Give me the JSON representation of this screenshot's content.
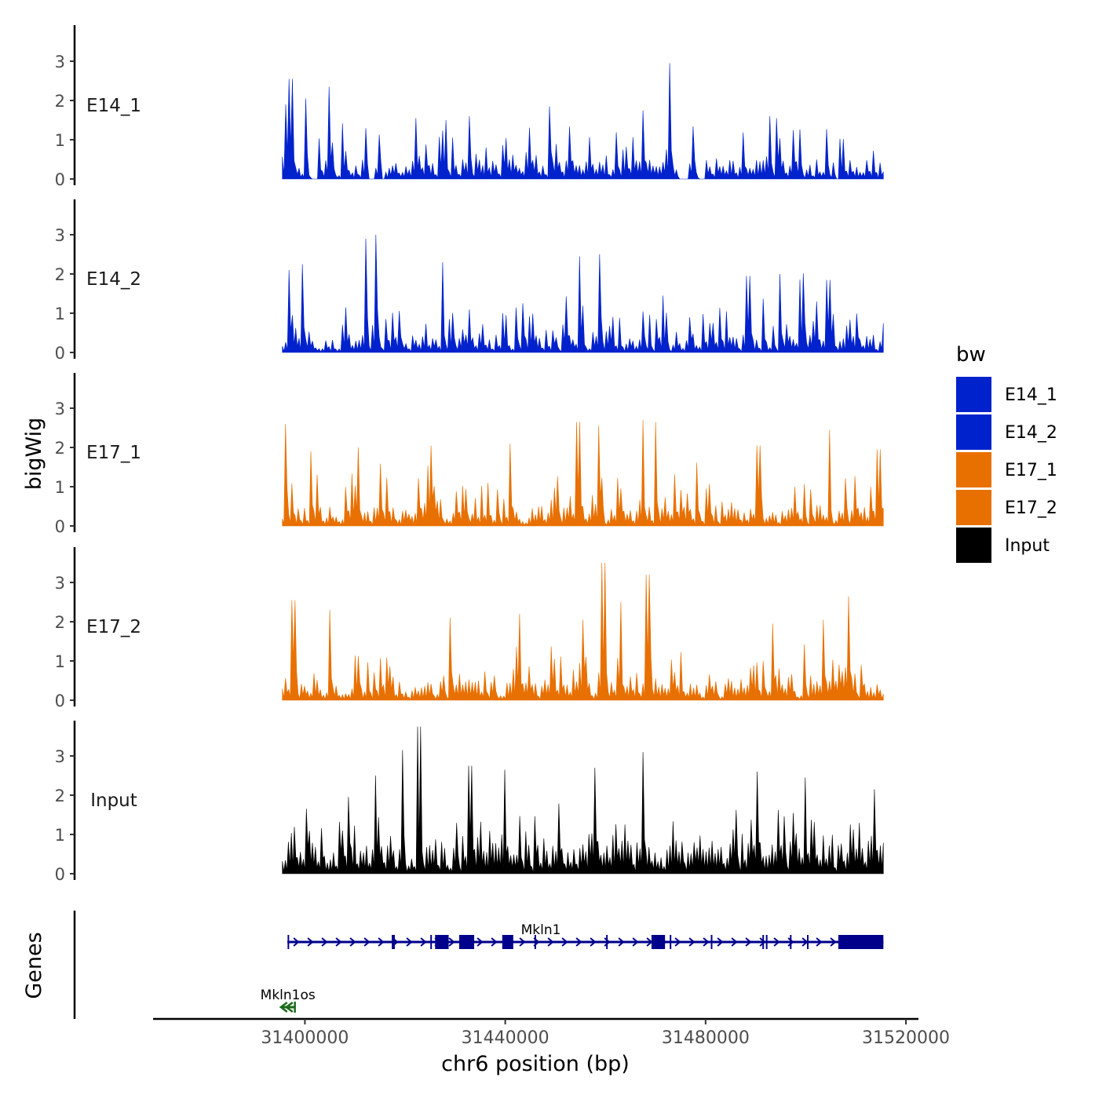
{
  "chart_data": {
    "type": "area",
    "title": "",
    "ylabel": "bigWig",
    "genes_label": "Genes",
    "xlabel": "chr6 position (bp)",
    "chromosome": "chr6",
    "xlim": [
      31370000,
      31522500
    ],
    "data_range": [
      31395500,
      31515500
    ],
    "x_ticks": [
      31400000,
      31440000,
      31480000,
      31520000
    ],
    "x_tick_labels": [
      "31400000",
      "31440000",
      "31480000",
      "31520000"
    ],
    "ylim": [
      0,
      3.9
    ],
    "y_ticks": [
      0,
      1,
      2,
      3
    ],
    "y_tick_labels": [
      "0",
      "1",
      "2",
      "3"
    ],
    "legend": {
      "title": "bw",
      "position": "right",
      "entries": [
        {
          "label": "E14_1",
          "color": "#0022cc"
        },
        {
          "label": "E14_2",
          "color": "#0022cc"
        },
        {
          "label": "E17_1",
          "color": "#e87000"
        },
        {
          "label": "E17_2",
          "color": "#e87000"
        },
        {
          "label": "Input",
          "color": "#000000"
        }
      ]
    },
    "series": [
      {
        "name": "E14_1",
        "color": "#0022cc",
        "bins": 180,
        "seed": 11,
        "base": 0.5,
        "spike": 1.1,
        "peaks": [
          [
            31395900,
            1.9
          ],
          [
            31397200,
            2.55
          ],
          [
            31400200,
            2.05
          ],
          [
            31405000,
            2.35
          ],
          [
            31422000,
            1.55
          ],
          [
            31433000,
            1.6
          ],
          [
            31449000,
            1.85
          ],
          [
            31467500,
            1.75
          ],
          [
            31472700,
            2.95
          ],
          [
            31493000,
            1.6
          ]
        ],
        "gaps": [
          [
            31401200,
            31402200
          ],
          [
            31412800,
            31413500
          ],
          [
            31415500,
            31416000
          ],
          [
            31474500,
            31476200
          ],
          [
            31478500,
            31479800
          ],
          [
            31505600,
            31506700
          ]
        ]
      },
      {
        "name": "E14_2",
        "color": "#0022cc",
        "bins": 180,
        "seed": 23,
        "base": 0.45,
        "spike": 1.1,
        "peaks": [
          [
            31396700,
            2.1
          ],
          [
            31399500,
            2.25
          ],
          [
            31412000,
            2.9
          ],
          [
            31414200,
            3.0
          ],
          [
            31427500,
            2.3
          ],
          [
            31455000,
            2.45
          ],
          [
            31459000,
            2.5
          ],
          [
            31471500,
            1.45
          ],
          [
            31488500,
            1.95
          ],
          [
            31495000,
            2.0
          ],
          [
            31504500,
            1.85
          ]
        ],
        "gaps": []
      },
      {
        "name": "E17_1",
        "color": "#e87000",
        "bins": 190,
        "seed": 37,
        "base": 0.5,
        "spike": 1.0,
        "peaks": [
          [
            31396200,
            2.6
          ],
          [
            31410500,
            2.0
          ],
          [
            31425000,
            2.05
          ],
          [
            31441000,
            2.1
          ],
          [
            31454500,
            2.65
          ],
          [
            31458500,
            2.55
          ],
          [
            31467500,
            2.7
          ],
          [
            31470000,
            2.65
          ],
          [
            31490500,
            2.05
          ],
          [
            31505000,
            2.45
          ],
          [
            31514500,
            1.95
          ]
        ],
        "gaps": []
      },
      {
        "name": "E17_2",
        "color": "#e87000",
        "bins": 190,
        "seed": 53,
        "base": 0.5,
        "spike": 1.0,
        "peaks": [
          [
            31397700,
            2.55
          ],
          [
            31404800,
            2.3
          ],
          [
            31429000,
            2.1
          ],
          [
            31443000,
            2.2
          ],
          [
            31455500,
            2.05
          ],
          [
            31459600,
            3.5
          ],
          [
            31463000,
            2.5
          ],
          [
            31468500,
            3.2
          ],
          [
            31493500,
            1.95
          ],
          [
            31503500,
            2.05
          ],
          [
            31508700,
            2.65
          ]
        ],
        "gaps": []
      },
      {
        "name": "Input",
        "color": "#000000",
        "bins": 200,
        "seed": 71,
        "base": 0.85,
        "spike": 1.2,
        "peaks": [
          [
            31414000,
            2.5
          ],
          [
            31419500,
            3.15
          ],
          [
            31422800,
            3.75
          ],
          [
            31433000,
            2.75
          ],
          [
            31440000,
            2.65
          ],
          [
            31458000,
            2.7
          ],
          [
            31467500,
            3.1
          ],
          [
            31490500,
            2.6
          ],
          [
            31500000,
            2.45
          ],
          [
            31513500,
            2.15
          ]
        ],
        "gaps": []
      }
    ],
    "genes": [
      {
        "name": "Mkln1",
        "label": "Mkln1",
        "strand": "+",
        "start": 31396500,
        "end": 31515500,
        "color": "#00008b",
        "exon_marks": [
          31396700,
          31417500,
          31417800,
          31425200,
          31446000,
          31460300,
          31473000,
          31481200,
          31491500,
          31492200,
          31497000,
          31500400
        ],
        "exon_blocks": [
          [
            31426000,
            31428700
          ],
          [
            31430800,
            31433800
          ],
          [
            31439400,
            31441600
          ],
          [
            31469200,
            31471900
          ],
          [
            31506500,
            31515500
          ]
        ]
      },
      {
        "name": "Mkln1os",
        "label": "Mkln1os",
        "strand": "-",
        "start": 31395200,
        "end": 31398000,
        "color": "#1a6b1a"
      }
    ]
  }
}
